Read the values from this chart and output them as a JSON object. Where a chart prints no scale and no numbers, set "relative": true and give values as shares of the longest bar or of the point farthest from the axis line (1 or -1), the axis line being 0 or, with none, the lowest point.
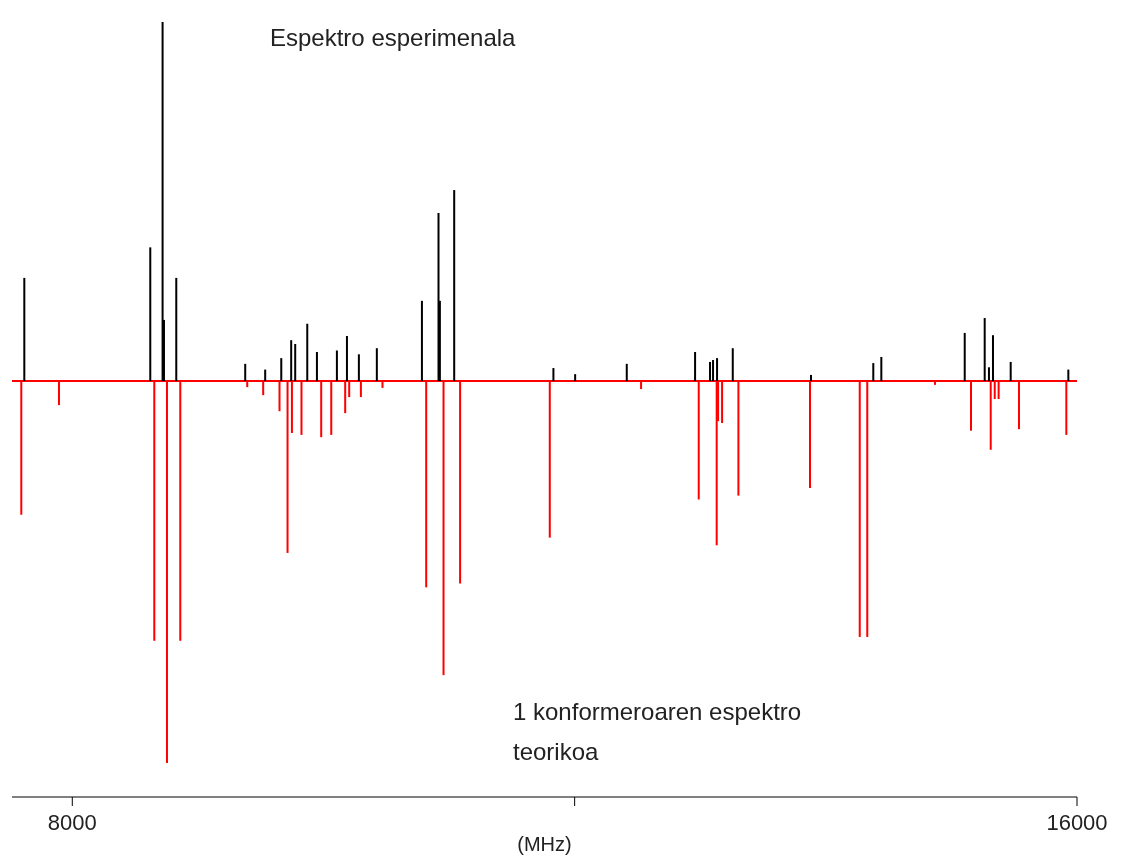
{
  "chart_data": {
    "type": "bar",
    "relative": true,
    "xlabel": "(MHz)",
    "annotations": [
      "Espektro esperimenala",
      "1 konformeroaren espektro teorikoa"
    ],
    "ref_lines": [
      {
        "axis": "y",
        "value": 0,
        "color": "#ff0000"
      }
    ],
    "xlim": [
      7520,
      16000
    ],
    "xticks": [
      8000,
      {
        "value": 12000,
        "label": null
      },
      16000
    ],
    "series": [
      {
        "color": "#000000",
        "x": [
          7618,
          8621,
          8719,
          8730,
          8828,
          9377,
          9536,
          9664,
          9743,
          9775,
          9871,
          9948,
          10107,
          10187,
          10282,
          10425,
          10784,
          10916,
          10927,
          11041,
          11831,
          12004,
          12415,
          12959,
          13078,
          13102,
          13134,
          13259,
          13882,
          14378,
          14442,
          15106,
          15265,
          15299,
          15331,
          15472,
          15931
        ],
        "values": [
          0.27,
          0.35,
          0.94,
          0.16,
          0.27,
          0.045,
          0.03,
          0.06,
          0.107,
          0.097,
          0.15,
          0.076,
          0.08,
          0.118,
          0.07,
          0.086,
          0.21,
          0.44,
          0.21,
          0.5,
          0.034,
          0.018,
          0.045,
          0.076,
          0.05,
          0.055,
          0.06,
          0.086,
          0.016,
          0.047,
          0.063,
          0.126,
          0.165,
          0.036,
          0.12,
          0.05,
          0.03
        ]
      },
      {
        "color": "#ff0000",
        "x": [
          7594,
          7894,
          8653,
          8754,
          8860,
          9393,
          9520,
          9650,
          9714,
          9749,
          9825,
          9982,
          10062,
          10173,
          10205,
          10298,
          10470,
          10818,
          10956,
          11088,
          11802,
          12529,
          12988,
          13131,
          13142,
          13174,
          13304,
          13874,
          14270,
          14330,
          14869,
          15156,
          15313,
          15345,
          15376,
          15538,
          15915
        ],
        "values": [
          -0.35,
          -0.063,
          -0.68,
          -1.0,
          -0.68,
          -0.016,
          -0.037,
          -0.079,
          -0.45,
          -0.136,
          -0.141,
          -0.147,
          -0.141,
          -0.084,
          -0.042,
          -0.042,
          -0.018,
          -0.54,
          -0.77,
          -0.53,
          -0.41,
          -0.021,
          -0.31,
          -0.43,
          -0.105,
          -0.11,
          -0.3,
          -0.28,
          -0.67,
          -0.67,
          -0.01,
          -0.13,
          -0.18,
          -0.047,
          -0.047,
          -0.126,
          -0.141
        ]
      }
    ]
  }
}
